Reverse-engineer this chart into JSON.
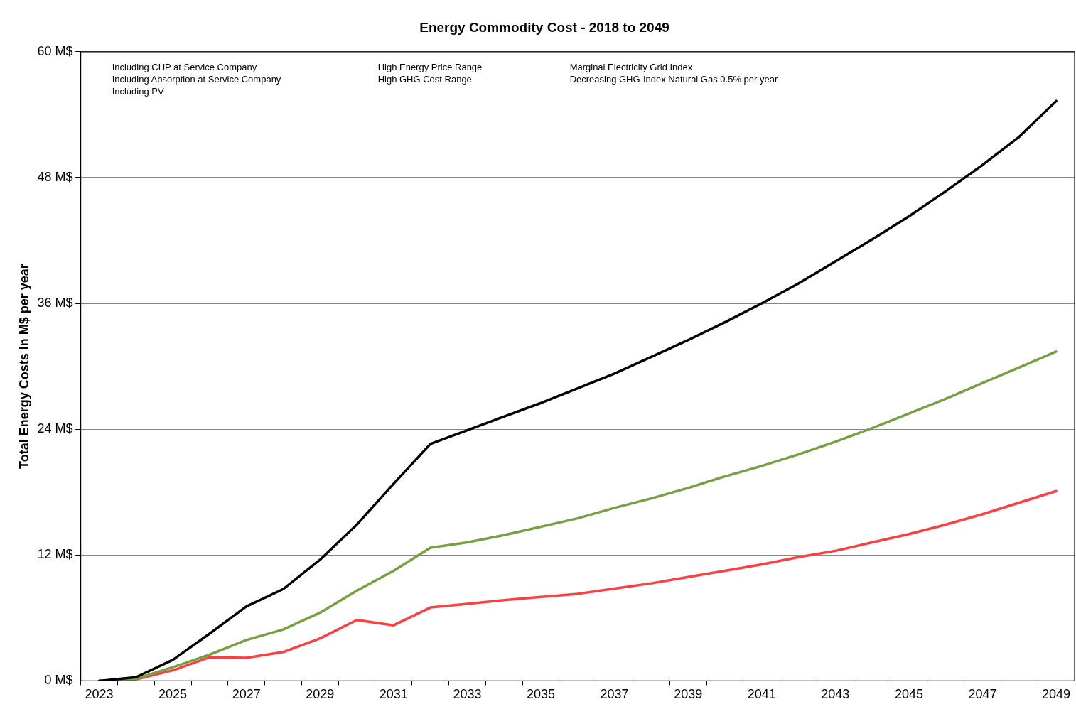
{
  "chart_data": {
    "type": "line",
    "title": "Energy Commodity Cost - 2018 to 2049",
    "ylabel": "Total Energy Costs in M$ per year",
    "categories": [
      "2023",
      null,
      "2025",
      null,
      "2027",
      null,
      "2029",
      null,
      "2031",
      null,
      "2033",
      null,
      "2035",
      null,
      "2037",
      null,
      "2039",
      null,
      "2041",
      null,
      "2043",
      null,
      "2045",
      null,
      "2047",
      null,
      "2049"
    ],
    "series": [
      {
        "color": "#000000",
        "values": [
          0,
          0.35,
          2.0,
          4.5,
          7.1,
          8.75,
          11.55,
          14.9,
          18.8,
          22.6,
          23.9,
          25.2,
          26.5,
          27.9,
          29.3,
          30.9,
          32.5,
          34.2,
          36.0,
          37.9,
          40.0,
          42.1,
          44.3,
          46.7,
          49.2,
          51.9,
          55.3
        ]
      },
      {
        "color": "#77a042",
        "values": [
          0,
          0.2,
          1.3,
          2.5,
          3.9,
          4.9,
          6.5,
          8.6,
          10.5,
          12.7,
          13.2,
          13.9,
          14.7,
          15.5,
          16.5,
          17.4,
          18.4,
          19.5,
          20.5,
          21.6,
          22.8,
          24.1,
          25.5,
          26.9,
          28.4,
          29.9,
          31.4
        ]
      },
      {
        "color": "#ff4040",
        "values": [
          0,
          0.15,
          1.0,
          2.25,
          2.2,
          2.75,
          4.05,
          5.8,
          5.3,
          7.0,
          7.35,
          7.7,
          8.0,
          8.3,
          8.8,
          9.3,
          9.9,
          10.5,
          11.1,
          11.8,
          12.4,
          13.2,
          14.0,
          14.9,
          15.9,
          17.0,
          18.1
        ]
      }
    ],
    "ylim": [
      0,
      60
    ],
    "yticks": [
      {
        "value": 0,
        "label": "0 M$"
      },
      {
        "value": 12,
        "label": "12 M$"
      },
      {
        "value": 24,
        "label": "24 M$"
      },
      {
        "value": 36,
        "label": "36 M$"
      },
      {
        "value": 48,
        "label": "48 M$"
      },
      {
        "value": 60,
        "label": "60 M$"
      }
    ],
    "grid": "y",
    "legend": false,
    "marker": "none",
    "line_style": "solid",
    "annotations": [
      "Including CHP at Service Company",
      "Including Absorption at Service Company",
      "Including PV",
      "High Energy Price Range",
      "High GHG Cost Range",
      "Marginal Electricity Grid Index",
      "Decreasing GHG-Index Natural Gas 0.5% per year"
    ]
  }
}
